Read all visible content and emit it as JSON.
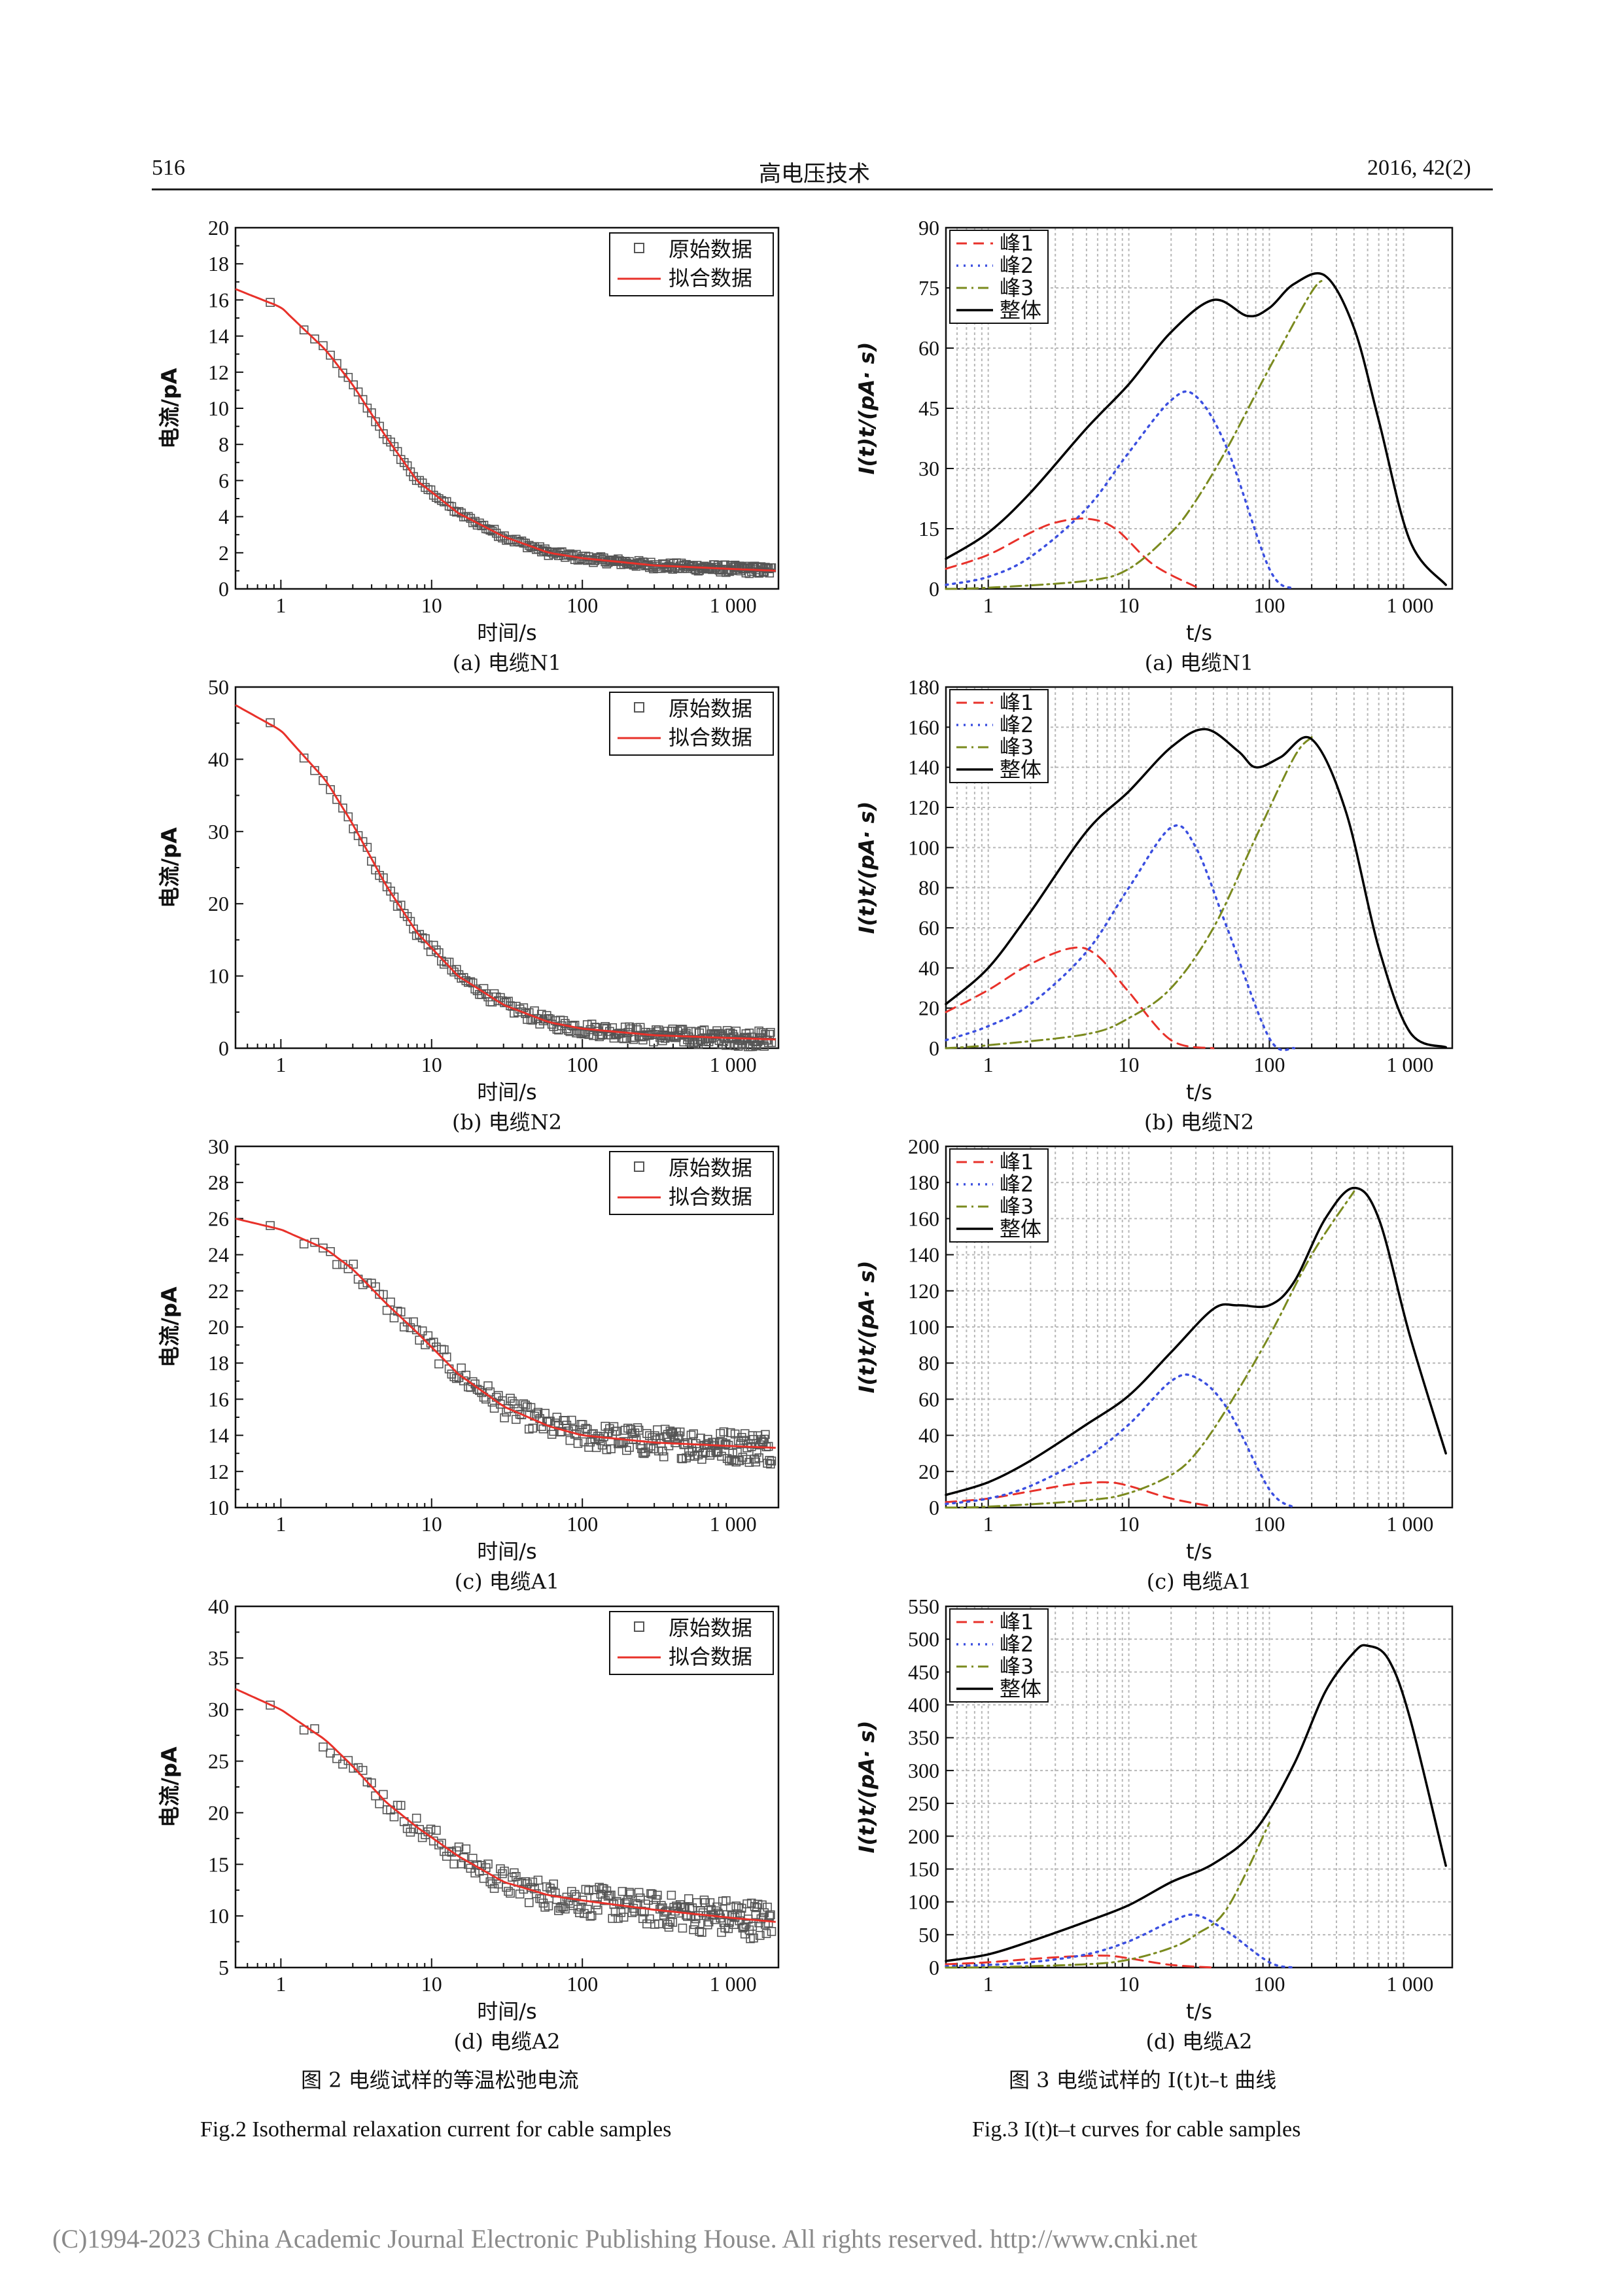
{
  "header": {
    "page": "516",
    "journal": "高电压技术",
    "issue": "2016, 42(2)"
  },
  "figures": {
    "fig2": {
      "caption_cn": "图 2   电缆试样的等温松弛电流",
      "caption_en": "Fig.2    Isothermal relaxation current for cable samples"
    },
    "fig3": {
      "caption_cn": "图 3   电缆试样的 I(t)t–t 曲线",
      "caption_en": "Fig.3    I(t)t–t curves for cable samples"
    }
  },
  "common": {
    "left_ylabel": "电流/pA",
    "left_xlabel": "时间/s",
    "right_ylabel": "I(t)t/(pA· s)",
    "right_xlabel": "t/s",
    "legend_left": [
      "原始数据",
      "拟合数据"
    ],
    "legend_right": [
      "峰1",
      "峰2",
      "峰3",
      "整体"
    ],
    "x_ticks": [
      "1",
      "10",
      "100",
      "1 000"
    ]
  },
  "colors": {
    "raw": "#555555",
    "fit": "#e8312a",
    "peak1": "#e8312a",
    "peak2": "#3b4fe0",
    "peak3": "#7a8a1e",
    "total": "#000000"
  },
  "chart_data": [
    {
      "type": "scatter",
      "id": "fig2a",
      "subtitle": "(a) 电缆N1",
      "xlabel": "时间/s",
      "ylabel": "电流/pA",
      "xscale": "log",
      "xlim": [
        0.5,
        2000
      ],
      "ylim": [
        0,
        20
      ],
      "yticks": [
        0,
        2,
        4,
        6,
        8,
        10,
        12,
        14,
        16,
        18,
        20
      ],
      "fit": {
        "x": [
          0.5,
          1,
          2,
          3,
          5,
          8,
          15,
          30,
          60,
          100,
          300,
          1000,
          2000
        ],
        "y": [
          16.6,
          15.6,
          13.2,
          11.3,
          8.4,
          6.0,
          4.2,
          2.9,
          2.0,
          1.7,
          1.3,
          1.1,
          1.0
        ]
      },
      "raw_noise": 0.15,
      "series": [
        {
          "name": "原始数据"
        },
        {
          "name": "拟合数据"
        }
      ]
    },
    {
      "type": "scatter",
      "id": "fig2b",
      "subtitle": "(b) 电缆N2",
      "xlabel": "时间/s",
      "ylabel": "电流/pA",
      "xscale": "log",
      "xlim": [
        0.5,
        2000
      ],
      "ylim": [
        0,
        50
      ],
      "yticks": [
        0,
        10,
        20,
        30,
        40,
        50
      ],
      "fit": {
        "x": [
          0.5,
          1,
          2,
          3,
          5,
          8,
          15,
          30,
          60,
          100,
          300,
          1000,
          2000
        ],
        "y": [
          47.5,
          44,
          37,
          31,
          22.5,
          16,
          10,
          6,
          3.6,
          2.7,
          1.8,
          1.4,
          1.2
        ]
      },
      "raw_noise": 0.3,
      "series": [
        {
          "name": "原始数据"
        },
        {
          "name": "拟合数据"
        }
      ]
    },
    {
      "type": "scatter",
      "id": "fig2c",
      "subtitle": "(c) 电缆A1",
      "xlabel": "时间/s",
      "ylabel": "电流/pA",
      "xscale": "log",
      "xlim": [
        0.5,
        2000
      ],
      "ylim": [
        10,
        30
      ],
      "yticks": [
        10,
        12,
        14,
        16,
        18,
        20,
        22,
        24,
        26,
        28,
        30
      ],
      "fit": {
        "x": [
          0.5,
          1,
          2,
          3,
          5,
          8,
          15,
          30,
          60,
          100,
          300,
          1000,
          2000
        ],
        "y": [
          26,
          25.4,
          24.3,
          23.2,
          21.3,
          19.7,
          17.4,
          15.6,
          14.5,
          14.0,
          13.6,
          13.4,
          13.3
        ]
      },
      "raw_noise": 0.6,
      "series": [
        {
          "name": "原始数据"
        },
        {
          "name": "拟合数据"
        }
      ]
    },
    {
      "type": "scatter",
      "id": "fig2d",
      "subtitle": "(d) 电缆A2",
      "xlabel": "时间/s",
      "ylabel": "电流/pA",
      "xscale": "log",
      "xlim": [
        0.5,
        2000
      ],
      "ylim": [
        5,
        40
      ],
      "yticks": [
        5,
        10,
        15,
        20,
        25,
        30,
        35,
        40
      ],
      "fit": {
        "x": [
          0.5,
          1,
          2,
          3,
          5,
          8,
          15,
          30,
          60,
          100,
          300,
          1000,
          2000
        ],
        "y": [
          32,
          30,
          27,
          24.5,
          21,
          18.6,
          15.8,
          13.3,
          12,
          11.5,
          10.6,
          9.8,
          9.4
        ]
      },
      "raw_noise": 0.7,
      "series": [
        {
          "name": "原始数据"
        },
        {
          "name": "拟合数据"
        }
      ]
    },
    {
      "type": "line",
      "id": "fig3a",
      "subtitle": "(a) 电缆N1",
      "xlabel": "t/s",
      "ylabel": "I(t)t/(pA· s)",
      "xscale": "log",
      "xlim": [
        0.5,
        2000
      ],
      "ylim": [
        0,
        90
      ],
      "yticks": [
        0,
        15,
        30,
        45,
        60,
        75,
        90
      ],
      "series": [
        {
          "name": "峰1",
          "x": [
            0.5,
            1,
            2,
            3,
            5,
            8,
            15,
            30
          ],
          "y": [
            5,
            8.5,
            14,
            16.5,
            17.5,
            15,
            6,
            0.5
          ]
        },
        {
          "name": "峰2",
          "x": [
            0.5,
            1,
            2,
            5,
            10,
            20,
            30,
            50,
            100,
            150
          ],
          "y": [
            1,
            3,
            8,
            20,
            34,
            47,
            48,
            35,
            5,
            0
          ]
        },
        {
          "name": "峰3",
          "x": [
            0.5,
            1,
            5,
            10,
            20,
            30,
            50,
            100,
            200,
            250
          ],
          "y": [
            0,
            0.3,
            2,
            5,
            14,
            22,
            35,
            55,
            74,
            77
          ]
        },
        {
          "name": "整体",
          "x": [
            0.5,
            1,
            2,
            5,
            10,
            20,
            40,
            70,
            100,
            150,
            250,
            400,
            600,
            1000,
            1800
          ],
          "y": [
            7.5,
            14,
            24,
            40,
            51,
            64,
            72,
            68,
            70,
            76,
            78,
            65,
            42,
            12,
            1
          ]
        }
      ]
    },
    {
      "type": "line",
      "id": "fig3b",
      "subtitle": "(b) 电缆N2",
      "xlabel": "t/s",
      "ylabel": "I(t)t/(pA· s)",
      "xscale": "log",
      "xlim": [
        0.5,
        2000
      ],
      "ylim": [
        0,
        180
      ],
      "yticks": [
        0,
        20,
        40,
        60,
        80,
        100,
        120,
        140,
        160,
        180
      ],
      "series": [
        {
          "name": "峰1",
          "x": [
            0.5,
            1,
            2,
            4,
            6,
            10,
            20,
            40
          ],
          "y": [
            18,
            29,
            42,
            50,
            46,
            28,
            4,
            0
          ]
        },
        {
          "name": "峰2",
          "x": [
            0.5,
            1,
            2,
            5,
            10,
            20,
            30,
            50,
            100,
            150
          ],
          "y": [
            4,
            11,
            22,
            48,
            80,
            110,
            100,
            60,
            5,
            0
          ]
        },
        {
          "name": "峰3",
          "x": [
            0.5,
            1,
            5,
            10,
            20,
            40,
            80,
            150,
            200
          ],
          "y": [
            0,
            1.5,
            7,
            15,
            30,
            60,
            105,
            145,
            155
          ]
        },
        {
          "name": "整体",
          "x": [
            0.5,
            1,
            2,
            5,
            10,
            20,
            35,
            60,
            80,
            120,
            200,
            350,
            600,
            1000,
            1800
          ],
          "y": [
            22,
            40,
            68,
            108,
            128,
            150,
            159,
            148,
            140,
            145,
            154,
            118,
            50,
            8,
            0.5
          ]
        }
      ]
    },
    {
      "type": "line",
      "id": "fig3c",
      "subtitle": "(c) 电缆A1",
      "xlabel": "t/s",
      "ylabel": "I(t)t/(pA· s)",
      "xscale": "log",
      "xlim": [
        0.5,
        2000
      ],
      "ylim": [
        0,
        200
      ],
      "yticks": [
        0,
        20,
        40,
        60,
        80,
        100,
        120,
        140,
        160,
        180,
        200
      ],
      "series": [
        {
          "name": "峰1",
          "x": [
            0.5,
            1,
            2,
            4,
            7,
            10,
            20,
            40
          ],
          "y": [
            3,
            5,
            9,
            13,
            14,
            12,
            5,
            0.5
          ]
        },
        {
          "name": "峰2",
          "x": [
            0.5,
            1,
            2,
            5,
            10,
            20,
            30,
            50,
            100,
            150
          ],
          "y": [
            2,
            5,
            12,
            28,
            46,
            70,
            72,
            55,
            10,
            0
          ]
        },
        {
          "name": "峰3",
          "x": [
            0.5,
            1,
            5,
            10,
            20,
            30,
            50,
            100,
            200,
            400
          ],
          "y": [
            0,
            0.5,
            4,
            8,
            18,
            30,
            55,
            95,
            140,
            175
          ]
        },
        {
          "name": "整体",
          "x": [
            0.5,
            1,
            2,
            5,
            10,
            20,
            40,
            60,
            100,
            150,
            250,
            400,
            600,
            1000,
            1800
          ],
          "y": [
            7,
            14,
            26,
            46,
            62,
            86,
            110,
            112,
            112,
            125,
            160,
            177,
            160,
            95,
            30
          ]
        }
      ]
    },
    {
      "type": "line",
      "id": "fig3d",
      "subtitle": "(d) 电缆A2",
      "xlabel": "t/s",
      "ylabel": "I(t)t/(pA· s)",
      "xscale": "log",
      "xlim": [
        0.5,
        2000
      ],
      "ylim": [
        0,
        550
      ],
      "yticks": [
        0,
        50,
        100,
        150,
        200,
        250,
        300,
        350,
        400,
        450,
        500,
        550
      ],
      "series": [
        {
          "name": "峰1",
          "x": [
            0.5,
            1,
            2,
            4,
            7,
            10,
            20,
            40
          ],
          "y": [
            5,
            8,
            13,
            17,
            18,
            14,
            4,
            0
          ]
        },
        {
          "name": "峰2",
          "x": [
            0.5,
            1,
            2,
            5,
            10,
            20,
            30,
            50,
            100,
            150
          ],
          "y": [
            2,
            4,
            8,
            20,
            40,
            70,
            80,
            55,
            8,
            0
          ]
        },
        {
          "name": "峰3",
          "x": [
            0.5,
            1,
            5,
            10,
            20,
            30,
            50,
            100
          ],
          "y": [
            0,
            0.5,
            5,
            12,
            30,
            50,
            90,
            220
          ]
        },
        {
          "name": "整体",
          "x": [
            0.5,
            1,
            2,
            5,
            10,
            20,
            40,
            80,
            150,
            250,
            400,
            500,
            700,
            1000,
            1800
          ],
          "y": [
            10,
            20,
            40,
            70,
            95,
            130,
            158,
            210,
            310,
            420,
            480,
            490,
            470,
            380,
            155
          ]
        }
      ]
    }
  ],
  "footer": "(C)1994-2023 China Academic Journal Electronic Publishing House. All rights reserved.     http://www.cnki.net"
}
